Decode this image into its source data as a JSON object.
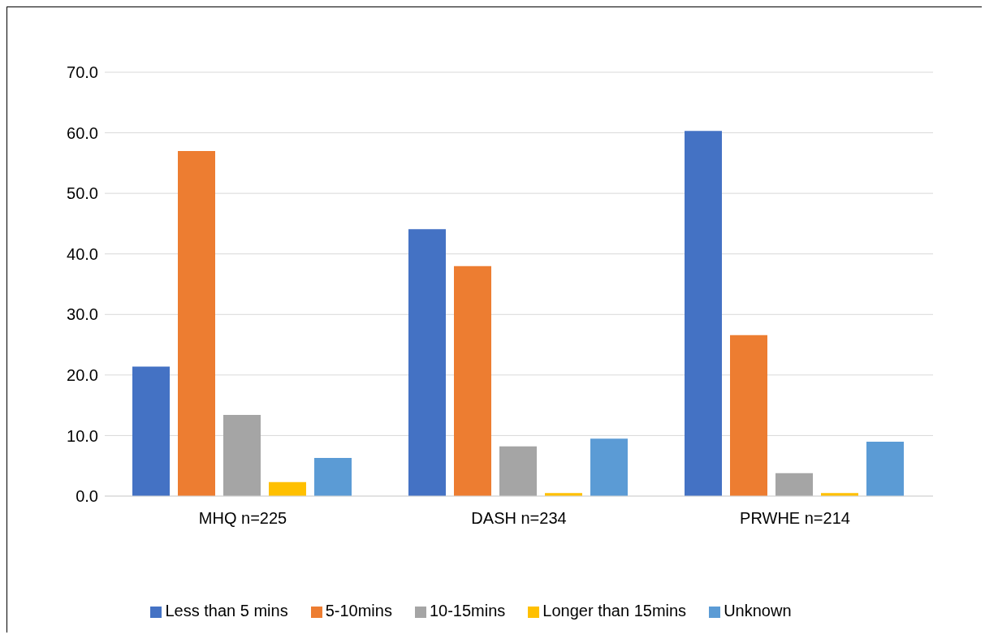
{
  "chart_data": {
    "type": "bar",
    "categories": [
      "MHQ n=225",
      "DASH n=234",
      "PRWHE n=214"
    ],
    "series": [
      {
        "name": "Less than 5 mins",
        "color": "#4472c4",
        "values": [
          21.4,
          44.1,
          60.3
        ]
      },
      {
        "name": "5-10mins",
        "color": "#ed7d31",
        "values": [
          57.0,
          38.0,
          26.6
        ]
      },
      {
        "name": "10-15mins",
        "color": "#a5a5a5",
        "values": [
          13.4,
          8.2,
          3.8
        ]
      },
      {
        "name": "Longer than 15mins",
        "color": "#ffc000",
        "values": [
          2.3,
          0.5,
          0.5
        ]
      },
      {
        "name": "Unknown",
        "color": "#5b9bd5",
        "values": [
          6.3,
          9.5,
          9.0
        ]
      }
    ],
    "ylim": [
      0,
      70
    ],
    "yticks": [
      {
        "value": 0,
        "label": "0.0"
      },
      {
        "value": 10,
        "label": "10.0"
      },
      {
        "value": 20,
        "label": "20.0"
      },
      {
        "value": 30,
        "label": "30.0"
      },
      {
        "value": 40,
        "label": "40.0"
      },
      {
        "value": 50,
        "label": "50.0"
      },
      {
        "value": 60,
        "label": "60.0"
      },
      {
        "value": 70,
        "label": "70.0"
      }
    ],
    "grid": "y",
    "legend": "bottom"
  }
}
